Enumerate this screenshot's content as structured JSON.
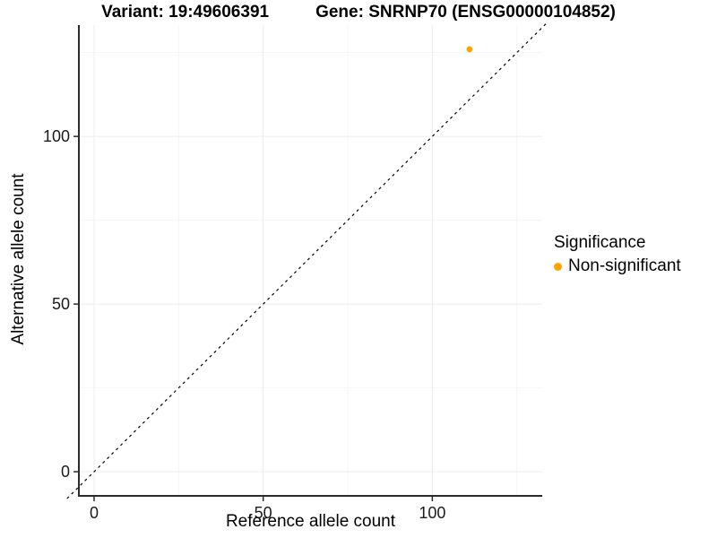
{
  "chart_data": {
    "type": "scatter",
    "title_variant": "Variant: 19:49606391",
    "title_gene": "Gene: SNRNP70 (ENSG00000104852)",
    "xlabel": "Reference allele count",
    "ylabel": "Alternative allele count",
    "x_ticks": [
      0,
      50,
      100
    ],
    "y_ticks": [
      0,
      50,
      100
    ],
    "x_minor_ticks": [
      25,
      75,
      125
    ],
    "y_minor_ticks": [
      25,
      75,
      125
    ],
    "xlim": [
      -4.5,
      132.5
    ],
    "ylim": [
      -7.2,
      133.2
    ],
    "grid": true,
    "points": [
      {
        "x": 111,
        "y": 126,
        "series": "Non-significant"
      }
    ],
    "identity_line": {
      "slope": 1,
      "intercept": 0,
      "style": "dashed",
      "color": "#000000"
    },
    "legend": {
      "title": "Significance",
      "position": "right",
      "entries": [
        {
          "label": "Non-significant",
          "color": "#FFA500"
        }
      ]
    },
    "colors": {
      "point": "#FFA500",
      "grid_major": "#ECECEC",
      "grid_minor": "#F5F5F5",
      "axis": "#2b2b2b",
      "tick_text": "#1a1a1a"
    }
  }
}
